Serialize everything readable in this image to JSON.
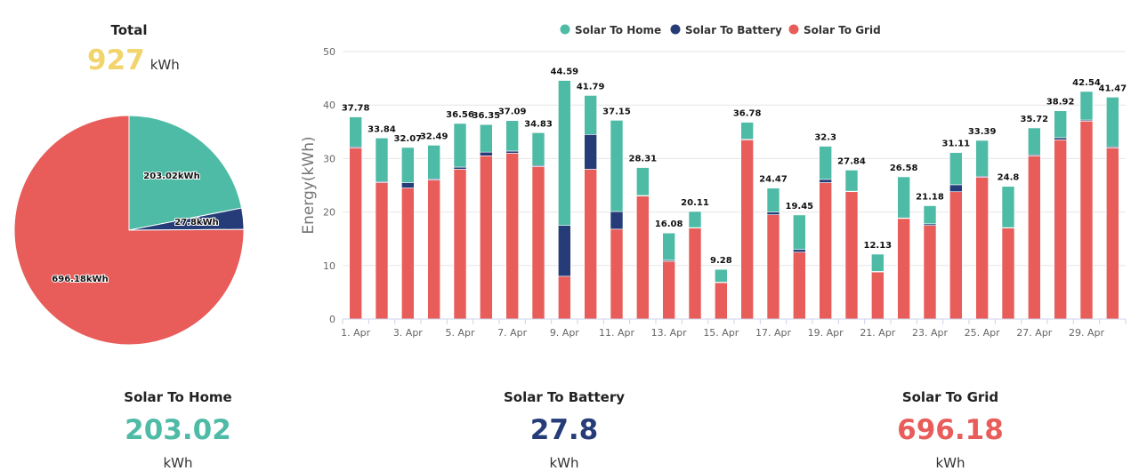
{
  "total": {
    "title": "Total",
    "value": "927",
    "unit": "kWh"
  },
  "colors": {
    "home": "#4ebba6",
    "battery": "#253c78",
    "grid": "#e85d5a",
    "total": "#f2d46d"
  },
  "pie_labels": {
    "home": "203.02kWh",
    "battery": "27.8kWh",
    "grid": "696.18kWh"
  },
  "stats": [
    {
      "label": "Solar To Home",
      "value": "203.02",
      "unit": "kWh"
    },
    {
      "label": "Solar To Battery",
      "value": "27.8",
      "unit": "kWh"
    },
    {
      "label": "Solar To Grid",
      "value": "696.18",
      "unit": "kWh"
    }
  ],
  "chart_data": [
    {
      "type": "pie",
      "labels": [
        "Solar To Home",
        "Solar To Battery",
        "Solar To Grid"
      ],
      "values": [
        203.02,
        27.8,
        696.18
      ]
    },
    {
      "type": "bar",
      "stacked": true,
      "ylabel": "Energy(kWh)",
      "ylim": [
        0,
        50
      ],
      "yticks": [
        0,
        10,
        20,
        30,
        40,
        50
      ],
      "grid": true,
      "legend": "top-center",
      "xtick_labels": [
        "1. Apr",
        "3. Apr",
        "5. Apr",
        "7. Apr",
        "9. Apr",
        "11. Apr",
        "13. Apr",
        "15. Apr",
        "17. Apr",
        "19. Apr",
        "21. Apr",
        "23. Apr",
        "25. Apr",
        "27. Apr",
        "29. Apr"
      ],
      "categories": [
        "1. Apr",
        "2. Apr",
        "3. Apr",
        "4. Apr",
        "5. Apr",
        "6. Apr",
        "7. Apr",
        "8. Apr",
        "9. Apr",
        "10. Apr",
        "11. Apr",
        "12. Apr",
        "13. Apr",
        "14. Apr",
        "15. Apr",
        "16. Apr",
        "17. Apr",
        "18. Apr",
        "19. Apr",
        "20. Apr",
        "21. Apr",
        "22. Apr",
        "23. Apr",
        "24. Apr",
        "25. Apr",
        "26. Apr",
        "27. Apr",
        "28. Apr",
        "29. Apr",
        "30. Apr"
      ],
      "totals": [
        "37.78",
        "33.84",
        "32.07",
        "32.49",
        "36.56",
        "36.35",
        "37.09",
        "34.83",
        "44.59",
        "41.79",
        "37.15",
        "28.31",
        "16.08",
        "20.11",
        "9.28",
        "36.78",
        "24.47",
        "19.45",
        "32.3",
        "27.84",
        "12.13",
        "26.58",
        "21.18",
        "31.11",
        "33.39",
        "24.8",
        "35.72",
        "38.92",
        "42.54",
        "41.47"
      ],
      "series": [
        {
          "name": "Solar To Grid",
          "values": [
            32.0,
            25.5,
            24.5,
            26.0,
            28.0,
            30.5,
            31.0,
            28.5,
            8.0,
            28.0,
            16.8,
            23.0,
            10.8,
            17.0,
            6.8,
            33.5,
            19.5,
            12.5,
            25.5,
            23.8,
            8.8,
            18.8,
            17.5,
            23.8,
            26.5,
            17.0,
            30.5,
            33.5,
            37.0,
            32.0
          ]
        },
        {
          "name": "Solar To Battery",
          "values": [
            0.2,
            0.2,
            1.0,
            0.2,
            0.4,
            0.7,
            0.4,
            0.2,
            9.5,
            6.5,
            3.3,
            0.1,
            0.2,
            0.1,
            0.1,
            0.1,
            0.5,
            0.5,
            0.6,
            0.1,
            0.1,
            0.1,
            0.3,
            1.3,
            0.2,
            0.1,
            0.2,
            0.4,
            0.2,
            0.2
          ]
        },
        {
          "name": "Solar To Home",
          "values": [
            5.58,
            8.14,
            6.57,
            6.29,
            8.16,
            5.15,
            5.69,
            6.13,
            27.09,
            7.29,
            17.05,
            5.21,
            5.08,
            3.01,
            2.38,
            3.18,
            4.47,
            6.45,
            6.2,
            3.94,
            3.23,
            7.68,
            3.38,
            6.01,
            6.69,
            7.7,
            5.02,
            5.02,
            5.34,
            9.27
          ]
        }
      ]
    }
  ]
}
